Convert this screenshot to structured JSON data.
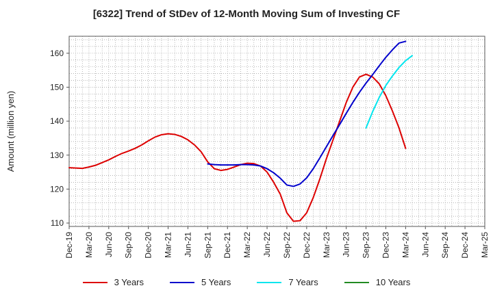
{
  "chart_data": {
    "type": "line",
    "title": "[6322]  Trend of StDev of 12-Month Moving Sum of Investing CF",
    "xlabel": "",
    "ylabel": "Amount (million yen)",
    "x_ticks": [
      "Dec-19",
      "Mar-20",
      "Jun-20",
      "Sep-20",
      "Dec-20",
      "Mar-21",
      "Jun-21",
      "Sep-21",
      "Dec-21",
      "Mar-22",
      "Jun-22",
      "Sep-22",
      "Dec-22",
      "Mar-23",
      "Jun-23",
      "Sep-23",
      "Dec-23",
      "Mar-24",
      "Jun-24",
      "Sep-24",
      "Dec-24",
      "Mar-25"
    ],
    "y_ticks": [
      110,
      120,
      130,
      140,
      150,
      160
    ],
    "ylim": [
      109,
      165
    ],
    "grid": true,
    "legend_position": "bottom",
    "series": [
      {
        "name": "3 Years",
        "color": "#dd0000",
        "points": [
          [
            "Dec-19",
            126.3
          ],
          [
            "Jan-20",
            126.2
          ],
          [
            "Feb-20",
            126.1
          ],
          [
            "Mar-20",
            126.5
          ],
          [
            "Apr-20",
            127.0
          ],
          [
            "May-20",
            127.8
          ],
          [
            "Jun-20",
            128.6
          ],
          [
            "Jul-20",
            129.6
          ],
          [
            "Aug-20",
            130.5
          ],
          [
            "Sep-20",
            131.2
          ],
          [
            "Oct-20",
            132.0
          ],
          [
            "Nov-20",
            133.0
          ],
          [
            "Dec-20",
            134.2
          ],
          [
            "Jan-21",
            135.3
          ],
          [
            "Feb-21",
            136.0
          ],
          [
            "Mar-21",
            136.3
          ],
          [
            "Apr-21",
            136.1
          ],
          [
            "May-21",
            135.5
          ],
          [
            "Jun-21",
            134.5
          ],
          [
            "Jul-21",
            133.0
          ],
          [
            "Aug-21",
            131.0
          ],
          [
            "Sep-21",
            128.0
          ],
          [
            "Oct-21",
            126.0
          ],
          [
            "Nov-21",
            125.5
          ],
          [
            "Dec-21",
            125.8
          ],
          [
            "Jan-22",
            126.5
          ],
          [
            "Feb-22",
            127.2
          ],
          [
            "Mar-22",
            127.6
          ],
          [
            "Apr-22",
            127.5
          ],
          [
            "May-22",
            126.8
          ],
          [
            "Jun-22",
            125.0
          ],
          [
            "Jul-22",
            122.0
          ],
          [
            "Aug-22",
            118.5
          ],
          [
            "Sep-22",
            113.0
          ],
          [
            "Oct-22",
            110.5
          ],
          [
            "Nov-22",
            110.7
          ],
          [
            "Dec-22",
            113.0
          ],
          [
            "Jan-23",
            117.5
          ],
          [
            "Feb-23",
            123.0
          ],
          [
            "Mar-23",
            129.0
          ],
          [
            "Apr-23",
            134.5
          ],
          [
            "May-23",
            140.0
          ],
          [
            "Jun-23",
            145.5
          ],
          [
            "Jul-23",
            150.0
          ],
          [
            "Aug-23",
            153.0
          ],
          [
            "Sep-23",
            153.8
          ],
          [
            "Oct-23",
            153.0
          ],
          [
            "Nov-23",
            151.0
          ],
          [
            "Dec-23",
            147.5
          ],
          [
            "Jan-24",
            143.0
          ],
          [
            "Feb-24",
            138.0
          ],
          [
            "Mar-24",
            132.0
          ]
        ]
      },
      {
        "name": "5 Years",
        "color": "#0000cc",
        "points": [
          [
            "Sep-21",
            127.4
          ],
          [
            "Oct-21",
            127.2
          ],
          [
            "Nov-21",
            127.1
          ],
          [
            "Dec-21",
            127.1
          ],
          [
            "Jan-22",
            127.1
          ],
          [
            "Feb-22",
            127.2
          ],
          [
            "Mar-22",
            127.2
          ],
          [
            "Apr-22",
            127.1
          ],
          [
            "May-22",
            126.8
          ],
          [
            "Jun-22",
            126.0
          ],
          [
            "Jul-22",
            124.8
          ],
          [
            "Aug-22",
            123.2
          ],
          [
            "Sep-22",
            121.2
          ],
          [
            "Oct-22",
            120.8
          ],
          [
            "Nov-22",
            121.5
          ],
          [
            "Dec-22",
            123.3
          ],
          [
            "Jan-23",
            126.0
          ],
          [
            "Feb-23",
            129.2
          ],
          [
            "Mar-23",
            132.5
          ],
          [
            "Apr-23",
            135.8
          ],
          [
            "May-23",
            139.0
          ],
          [
            "Jun-23",
            142.3
          ],
          [
            "Jul-23",
            145.5
          ],
          [
            "Aug-23",
            148.5
          ],
          [
            "Sep-23",
            151.2
          ],
          [
            "Oct-23",
            153.7
          ],
          [
            "Nov-23",
            156.3
          ],
          [
            "Dec-23",
            158.8
          ],
          [
            "Jan-24",
            161.0
          ],
          [
            "Feb-24",
            163.0
          ],
          [
            "Mar-24",
            163.5
          ]
        ]
      },
      {
        "name": "7 Years",
        "color": "#00e5ee",
        "points": [
          [
            "Sep-23",
            138.0
          ],
          [
            "Oct-23",
            142.8
          ],
          [
            "Nov-23",
            147.0
          ],
          [
            "Dec-23",
            150.5
          ],
          [
            "Jan-24",
            153.3
          ],
          [
            "Feb-24",
            155.8
          ],
          [
            "Mar-24",
            157.8
          ],
          [
            "Apr-24",
            159.3
          ]
        ]
      },
      {
        "name": "10 Years",
        "color": "#228b22",
        "points": []
      }
    ]
  }
}
